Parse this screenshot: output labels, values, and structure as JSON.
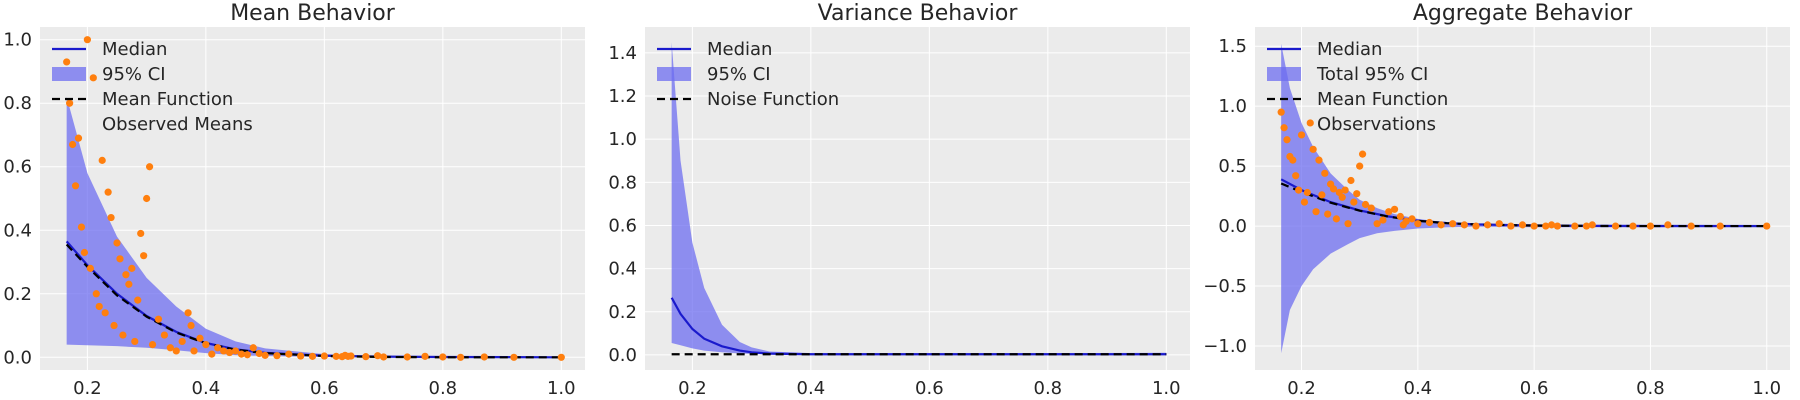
{
  "chart_data": [
    {
      "type": "line",
      "title": "Mean Behavior",
      "xlim": [
        0.12,
        1.04
      ],
      "ylim": [
        -0.04,
        1.04
      ],
      "xticks": [
        0.2,
        0.4,
        0.6,
        0.8,
        1.0
      ],
      "xtick_labels": [
        "0.2",
        "0.4",
        "0.6",
        "0.8",
        "1.0"
      ],
      "yticks": [
        0.0,
        0.2,
        0.4,
        0.6,
        0.8,
        1.0
      ],
      "ytick_labels": [
        "0.0",
        "0.2",
        "0.4",
        "0.6",
        "0.8",
        "1.0"
      ],
      "grid": true,
      "legend_position": "top-left",
      "legend": [
        {
          "label": "Median",
          "kind": "line",
          "color": "#1a1acc"
        },
        {
          "label": "95% CI",
          "kind": "band",
          "color": "#6e6ef0"
        },
        {
          "label": "Mean Function",
          "kind": "dashed",
          "color": "#000000"
        },
        {
          "label": "Observed Means",
          "kind": "marker",
          "color": "#ff7f0e"
        }
      ],
      "series": [
        {
          "name": "Median",
          "x": [
            0.165,
            0.2,
            0.25,
            0.3,
            0.35,
            0.4,
            0.45,
            0.5,
            0.6,
            0.7,
            0.8,
            1.0
          ],
          "y": [
            0.365,
            0.29,
            0.2,
            0.13,
            0.08,
            0.045,
            0.025,
            0.014,
            0.005,
            0.002,
            0.001,
            0.0
          ]
        },
        {
          "name": "Mean Function",
          "x": [
            0.165,
            0.2,
            0.25,
            0.3,
            0.35,
            0.4,
            0.45,
            0.5,
            0.6,
            0.7,
            0.8,
            1.0
          ],
          "y": [
            0.355,
            0.285,
            0.195,
            0.128,
            0.078,
            0.044,
            0.024,
            0.013,
            0.004,
            0.001,
            0.0,
            0.0
          ]
        },
        {
          "name": "95% CI",
          "x": [
            0.165,
            0.2,
            0.25,
            0.3,
            0.35,
            0.4,
            0.45,
            0.5,
            0.6,
            0.7,
            0.8,
            1.0
          ],
          "upper": [
            0.82,
            0.58,
            0.38,
            0.25,
            0.16,
            0.09,
            0.05,
            0.028,
            0.01,
            0.004,
            0.002,
            0.001
          ],
          "lower": [
            0.04,
            0.038,
            0.035,
            0.03,
            0.022,
            0.013,
            0.007,
            0.004,
            0.001,
            0.0,
            0.0,
            0.0
          ]
        },
        {
          "name": "Observed Means",
          "x": [
            0.165,
            0.17,
            0.175,
            0.18,
            0.185,
            0.19,
            0.195,
            0.2,
            0.205,
            0.21,
            0.215,
            0.22,
            0.225,
            0.23,
            0.235,
            0.24,
            0.245,
            0.25,
            0.255,
            0.26,
            0.265,
            0.27,
            0.275,
            0.28,
            0.285,
            0.29,
            0.295,
            0.3,
            0.305,
            0.31,
            0.32,
            0.33,
            0.34,
            0.35,
            0.36,
            0.37,
            0.375,
            0.38,
            0.39,
            0.4,
            0.41,
            0.42,
            0.43,
            0.44,
            0.45,
            0.46,
            0.47,
            0.48,
            0.49,
            0.5,
            0.52,
            0.54,
            0.56,
            0.58,
            0.6,
            0.62,
            0.63,
            0.635,
            0.64,
            0.645,
            0.67,
            0.69,
            0.7,
            0.74,
            0.77,
            0.8,
            0.83,
            0.87,
            0.92,
            1.0
          ],
          "y": [
            0.93,
            0.8,
            0.67,
            0.54,
            0.69,
            0.41,
            0.33,
            1.0,
            0.28,
            0.88,
            0.2,
            0.16,
            0.62,
            0.14,
            0.52,
            0.44,
            0.1,
            0.36,
            0.31,
            0.07,
            0.26,
            0.23,
            0.28,
            0.05,
            0.18,
            0.39,
            0.32,
            0.5,
            0.6,
            0.04,
            0.12,
            0.07,
            0.03,
            0.02,
            0.05,
            0.14,
            0.1,
            0.02,
            0.06,
            0.04,
            0.01,
            0.03,
            0.02,
            0.015,
            0.02,
            0.01,
            0.008,
            0.03,
            0.012,
            0.006,
            0.005,
            0.01,
            0.004,
            0.003,
            0.004,
            0.003,
            0.002,
            0.006,
            0.003,
            0.004,
            0.002,
            0.005,
            0.001,
            0.001,
            0.003,
            0.001,
            0.0,
            0.001,
            0.0,
            0.0
          ]
        }
      ]
    },
    {
      "type": "line",
      "title": "Variance Behavior",
      "xlim": [
        0.12,
        1.04
      ],
      "ylim": [
        -0.07,
        1.52
      ],
      "xticks": [
        0.2,
        0.4,
        0.6,
        0.8,
        1.0
      ],
      "xtick_labels": [
        "0.2",
        "0.4",
        "0.6",
        "0.8",
        "1.0"
      ],
      "yticks": [
        0.0,
        0.2,
        0.4,
        0.6,
        0.8,
        1.0,
        1.2,
        1.4
      ],
      "ytick_labels": [
        "0.0",
        "0.2",
        "0.4",
        "0.6",
        "0.8",
        "1.0",
        "1.2",
        "1.4"
      ],
      "grid": true,
      "legend_position": "top-left",
      "legend": [
        {
          "label": "Median",
          "kind": "line",
          "color": "#1a1acc"
        },
        {
          "label": "95% CI",
          "kind": "band",
          "color": "#6e6ef0"
        },
        {
          "label": "Noise Function",
          "kind": "dashed",
          "color": "#000000"
        }
      ],
      "series": [
        {
          "name": "Median",
          "x": [
            0.165,
            0.18,
            0.2,
            0.22,
            0.25,
            0.28,
            0.3,
            0.33,
            0.4,
            0.5,
            0.6,
            0.8,
            1.0
          ],
          "y": [
            0.265,
            0.19,
            0.12,
            0.075,
            0.04,
            0.02,
            0.012,
            0.006,
            0.003,
            0.003,
            0.003,
            0.003,
            0.003
          ]
        },
        {
          "name": "Noise Function",
          "x": [
            0.165,
            0.3,
            0.5,
            0.8,
            1.0
          ],
          "y": [
            0.003,
            0.003,
            0.003,
            0.003,
            0.003
          ]
        },
        {
          "name": "95% CI",
          "x": [
            0.165,
            0.18,
            0.2,
            0.22,
            0.25,
            0.28,
            0.3,
            0.33,
            0.4,
            0.5,
            0.6,
            0.8,
            1.0
          ],
          "upper": [
            1.45,
            0.9,
            0.52,
            0.31,
            0.14,
            0.06,
            0.035,
            0.016,
            0.008,
            0.008,
            0.008,
            0.008,
            0.01
          ],
          "lower": [
            0.055,
            0.045,
            0.03,
            0.02,
            0.012,
            0.007,
            0.005,
            0.003,
            0.001,
            0.001,
            0.001,
            0.001,
            0.001
          ]
        }
      ]
    },
    {
      "type": "line",
      "title": "Aggregate Behavior",
      "xlim": [
        0.12,
        1.04
      ],
      "ylim": [
        -1.2,
        1.66
      ],
      "xticks": [
        0.2,
        0.4,
        0.6,
        0.8,
        1.0
      ],
      "xtick_labels": [
        "0.2",
        "0.4",
        "0.6",
        "0.8",
        "1.0"
      ],
      "yticks": [
        -1.0,
        -0.5,
        0.0,
        0.5,
        1.0,
        1.5
      ],
      "ytick_labels": [
        "−1.0",
        "−0.5",
        "0.0",
        "0.5",
        "1.0",
        "1.5"
      ],
      "grid": true,
      "legend_position": "top-left",
      "legend": [
        {
          "label": "Median",
          "kind": "line",
          "color": "#1a1acc"
        },
        {
          "label": "Total 95% CI",
          "kind": "band",
          "color": "#6e6ef0"
        },
        {
          "label": "Mean Function",
          "kind": "dashed",
          "color": "#000000"
        },
        {
          "label": "Observations",
          "kind": "marker",
          "color": "#ff7f0e"
        }
      ],
      "series": [
        {
          "name": "Median",
          "x": [
            0.165,
            0.2,
            0.25,
            0.3,
            0.35,
            0.4,
            0.45,
            0.5,
            0.6,
            0.7,
            0.8,
            1.0
          ],
          "y": [
            0.39,
            0.3,
            0.2,
            0.13,
            0.08,
            0.045,
            0.025,
            0.014,
            0.005,
            0.002,
            0.001,
            0.0
          ]
        },
        {
          "name": "Mean Function",
          "x": [
            0.165,
            0.2,
            0.25,
            0.3,
            0.35,
            0.4,
            0.45,
            0.5,
            0.6,
            0.7,
            0.8,
            1.0
          ],
          "y": [
            0.355,
            0.285,
            0.195,
            0.128,
            0.078,
            0.044,
            0.024,
            0.013,
            0.004,
            0.001,
            0.0,
            0.0
          ]
        },
        {
          "name": "Total 95% CI",
          "x": [
            0.165,
            0.18,
            0.2,
            0.22,
            0.25,
            0.28,
            0.3,
            0.33,
            0.36,
            0.4,
            0.45,
            0.5,
            0.6,
            0.7,
            0.8,
            1.0
          ],
          "upper": [
            1.52,
            1.15,
            0.86,
            0.66,
            0.44,
            0.3,
            0.22,
            0.15,
            0.1,
            0.06,
            0.03,
            0.02,
            0.015,
            0.01,
            0.01,
            0.01
          ],
          "lower": [
            -1.06,
            -0.7,
            -0.5,
            -0.36,
            -0.23,
            -0.15,
            -0.1,
            -0.06,
            -0.04,
            -0.02,
            -0.01,
            -0.005,
            -0.01,
            -0.01,
            -0.01,
            -0.01
          ]
        },
        {
          "name": "Observations",
          "x": [
            0.165,
            0.17,
            0.175,
            0.18,
            0.185,
            0.19,
            0.195,
            0.2,
            0.205,
            0.21,
            0.215,
            0.22,
            0.225,
            0.23,
            0.235,
            0.24,
            0.245,
            0.25,
            0.255,
            0.26,
            0.265,
            0.27,
            0.275,
            0.28,
            0.285,
            0.29,
            0.295,
            0.3,
            0.305,
            0.31,
            0.32,
            0.33,
            0.34,
            0.35,
            0.36,
            0.37,
            0.375,
            0.38,
            0.39,
            0.4,
            0.42,
            0.44,
            0.46,
            0.48,
            0.5,
            0.52,
            0.54,
            0.56,
            0.58,
            0.6,
            0.62,
            0.63,
            0.64,
            0.67,
            0.69,
            0.7,
            0.74,
            0.77,
            0.8,
            0.83,
            0.87,
            0.92,
            1.0
          ],
          "y": [
            0.95,
            0.82,
            0.72,
            0.58,
            0.55,
            0.42,
            0.3,
            0.76,
            0.2,
            0.28,
            0.86,
            0.64,
            0.12,
            0.55,
            0.26,
            0.44,
            0.1,
            0.35,
            0.31,
            0.06,
            0.28,
            0.24,
            0.3,
            0.02,
            0.38,
            0.2,
            0.27,
            0.5,
            0.6,
            0.18,
            0.15,
            0.02,
            0.05,
            0.12,
            0.14,
            0.08,
            0.01,
            0.04,
            0.06,
            0.02,
            0.03,
            0.01,
            0.02,
            0.01,
            0.0,
            0.01,
            0.02,
            0.0,
            0.01,
            0.0,
            0.0,
            0.01,
            0.0,
            0.0,
            0.0,
            0.01,
            0.0,
            0.0,
            0.0,
            0.01,
            0.0,
            0.0,
            0.0
          ]
        }
      ]
    }
  ],
  "colors": {
    "axes_bg": "#ebebeb",
    "grid": "#ffffff",
    "median": "#1a1acc",
    "band": "#6e6ef0",
    "mean_function": "#000000",
    "points": "#ff7f0e"
  }
}
